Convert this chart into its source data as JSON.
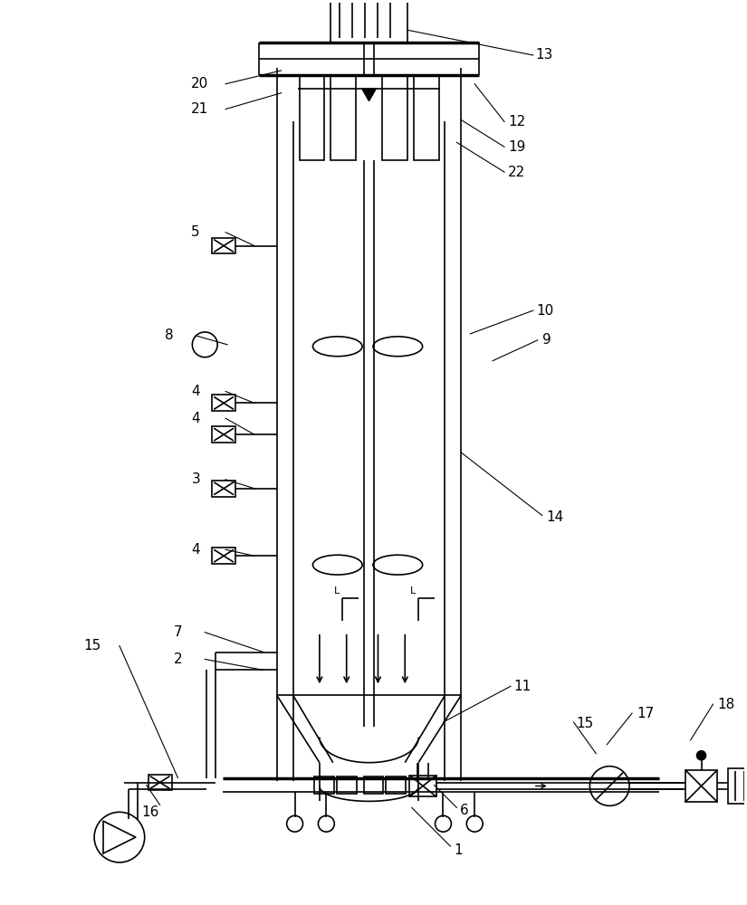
{
  "bg_color": "#ffffff",
  "line_color": "#000000",
  "lw": 1.2,
  "tlw": 2.5,
  "fig_width": 8.25,
  "fig_height": 10.0
}
